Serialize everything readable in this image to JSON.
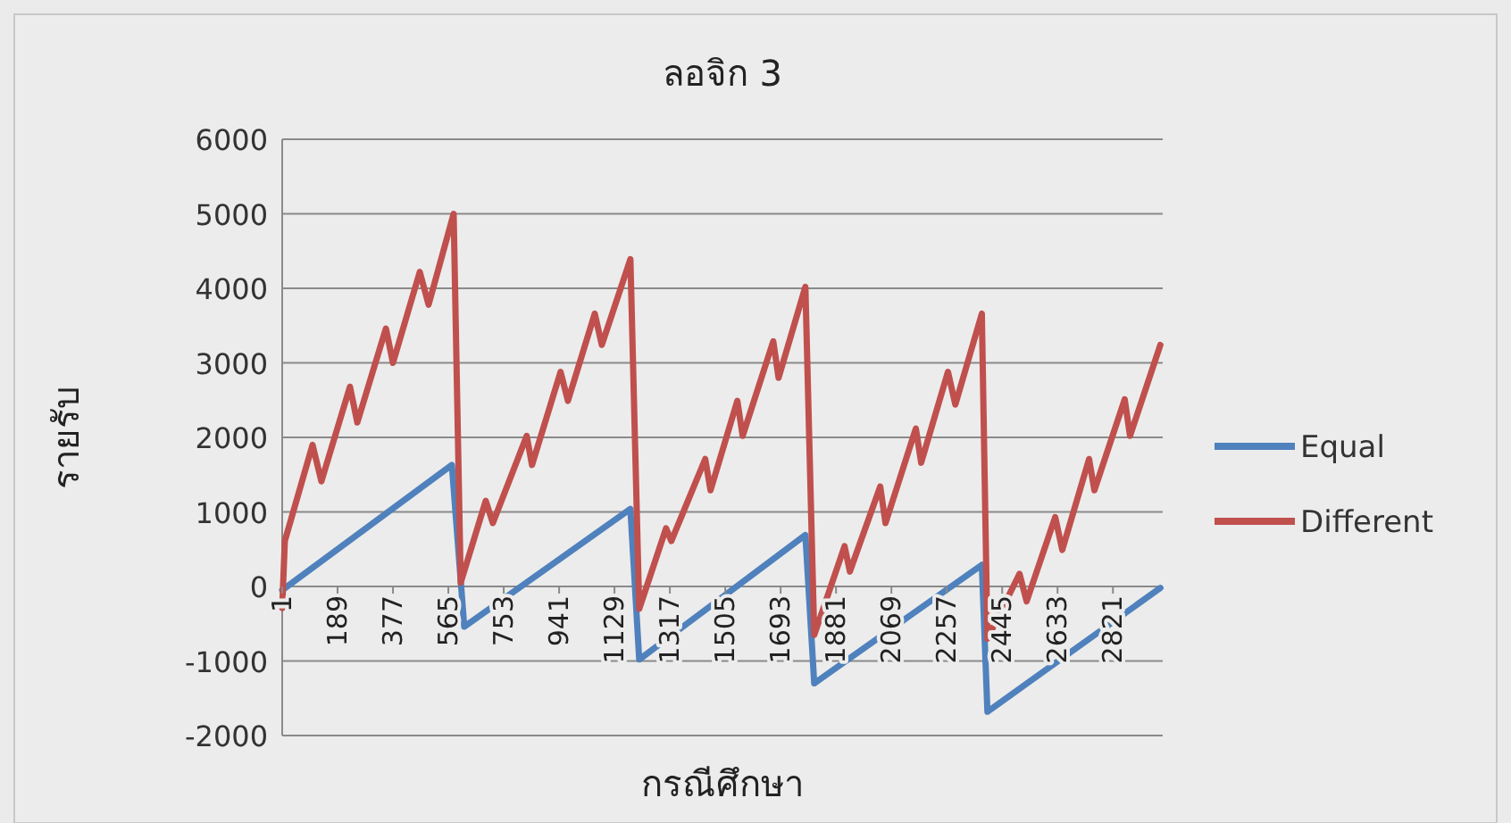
{
  "chart_data": {
    "type": "line",
    "title": "ลอจิก 3",
    "xlabel": "กรณีศึกษา",
    "ylabel": "รายรับ",
    "xlim": [
      1,
      2990
    ],
    "ylim": [
      -2000,
      6000
    ],
    "xticks": [
      1,
      189,
      377,
      565,
      753,
      941,
      1129,
      1317,
      1505,
      1693,
      1881,
      2069,
      2257,
      2445,
      2633,
      2821
    ],
    "yticks": [
      -2000,
      -1000,
      0,
      1000,
      2000,
      3000,
      4000,
      5000,
      6000
    ],
    "grid": "y",
    "legend": "right",
    "series": [
      {
        "name": "Equal",
        "color": "#4f81bd",
        "x": [
          1,
          577,
          619,
          1183,
          1213,
          1777,
          1807,
          2376,
          2395,
          2982
        ],
        "values": [
          -50,
          1630,
          -540,
          1040,
          -980,
          690,
          -1300,
          290,
          -1680,
          -20
        ]
      },
      {
        "name": "Different",
        "color": "#c0504d",
        "x": [
          1,
          10,
          104,
          134,
          231,
          256,
          353,
          377,
          468,
          498,
          583,
          607,
          692,
          716,
          831,
          849,
          946,
          971,
          1062,
          1086,
          1183,
          1213,
          1304,
          1322,
          1437,
          1455,
          1546,
          1564,
          1668,
          1686,
          1777,
          1807,
          1910,
          1928,
          2031,
          2049,
          2152,
          2170,
          2261,
          2286,
          2376,
          2395,
          2504,
          2528,
          2625,
          2649,
          2740,
          2758,
          2861,
          2879,
          2982
        ],
        "values": [
          -290,
          610,
          1900,
          1410,
          2680,
          2200,
          3460,
          3000,
          4220,
          3780,
          5000,
          50,
          1150,
          850,
          2020,
          1630,
          2880,
          2490,
          3660,
          3240,
          4390,
          -300,
          780,
          610,
          1710,
          1290,
          2490,
          2020,
          3290,
          2800,
          4020,
          -650,
          540,
          200,
          1340,
          850,
          2120,
          1660,
          2880,
          2440,
          3660,
          -700,
          170,
          -200,
          930,
          490,
          1710,
          1290,
          2510,
          2020,
          3240
        ]
      }
    ]
  }
}
